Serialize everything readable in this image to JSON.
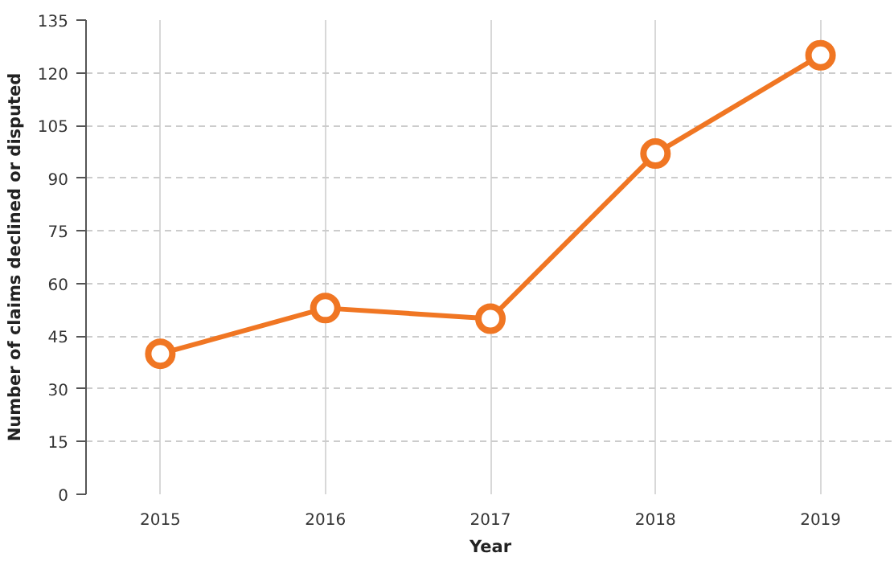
{
  "chart_data": {
    "type": "line",
    "xlabel": "Year",
    "ylabel": "Number of claims declined or disputed",
    "categories": [
      "2015",
      "2016",
      "2017",
      "2018",
      "2019"
    ],
    "series": [
      {
        "color": "#f07623",
        "values": [
          40,
          53,
          50,
          97,
          125
        ]
      }
    ],
    "ylim": [
      0,
      135
    ],
    "yticks": [
      0,
      15,
      30,
      45,
      60,
      75,
      90,
      105,
      120,
      135
    ],
    "grid": true,
    "marker": "circle",
    "line_style": "solid"
  }
}
